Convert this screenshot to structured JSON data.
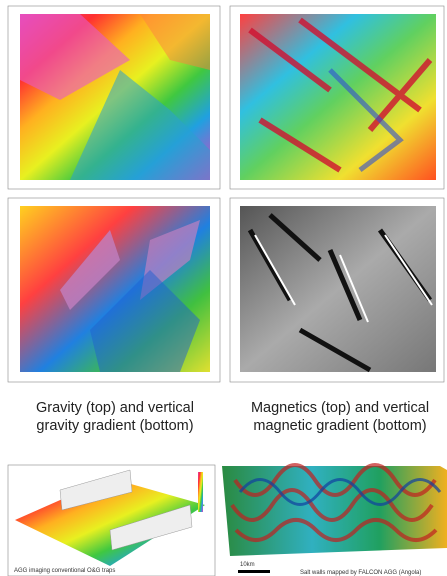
{
  "figure": {
    "gravity_caption": [
      "Gravity (top) and vertical",
      "gravity gradient (bottom)"
    ],
    "magnetics_caption": [
      "Magnetics (top) and vertical",
      "magnetic gradient (bottom)"
    ],
    "traps_caption": "AGG imaging conventional O&G traps",
    "salt_scale": "10km",
    "salt_caption": "Salt walls mapped by FALCON AGG (Angola)"
  }
}
